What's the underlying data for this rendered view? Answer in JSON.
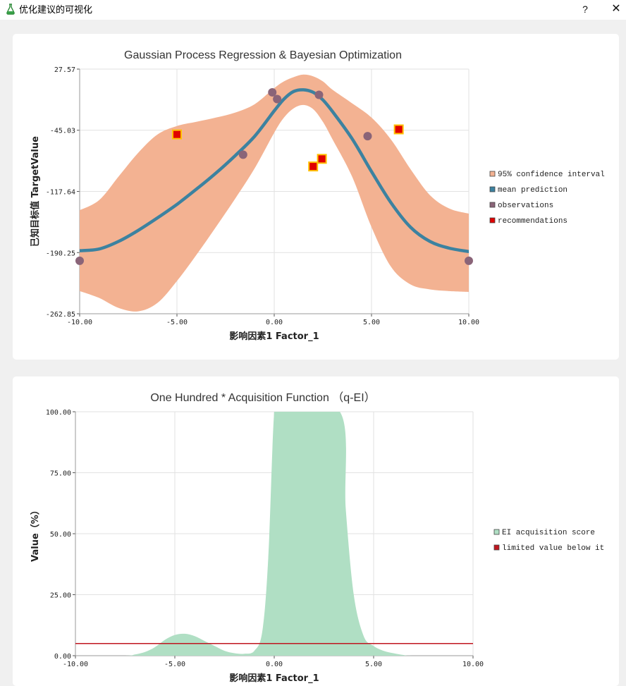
{
  "window": {
    "title": "优化建议的可视化",
    "help_label": "?",
    "close_label": "✕",
    "icon": "flask-icon"
  },
  "colors": {
    "ci_fill": "#f3b292",
    "mean_line": "#3c82a0",
    "observation": "#8a6478",
    "recommendation": "#e00000",
    "recommendation_border": "#ffc000",
    "ei_fill": "#b0dfc4",
    "limit_line": "#c0161f"
  },
  "chart_data": [
    {
      "type": "line",
      "title": "Gaussian Process Regression & Bayesian Optimization",
      "xlabel": "影响因素1 Factor_1",
      "ylabel": "已知目标值 TargetValue",
      "xlim": [
        -10,
        10
      ],
      "ylim": [
        -262.85,
        27.57
      ],
      "xticks": [
        -10,
        -5,
        0,
        5,
        10
      ],
      "xtick_labels": [
        "-10.00",
        "-5.00",
        "0.00",
        "5.00",
        "10.00"
      ],
      "yticks": [
        27.57,
        -45.03,
        -117.64,
        -190.25,
        -262.85
      ],
      "ytick_labels": [
        "27.57",
        "-45.03",
        "-117.64",
        "-190.25",
        "-262.85"
      ],
      "grid": true,
      "legend_position": "right",
      "legend": [
        "95% confidence interval",
        "mean prediction",
        "observations",
        "recommendations"
      ],
      "mean_prediction": {
        "name": "mean prediction",
        "x": [
          -10,
          -9,
          -8,
          -7,
          -6,
          -5,
          -4,
          -3,
          -2,
          -1,
          0,
          0.5,
          1,
          1.5,
          2,
          2.5,
          3,
          4,
          5,
          6,
          7,
          8,
          9,
          10
        ],
        "y": [
          -188,
          -186,
          -177,
          -164,
          -149,
          -133,
          -115,
          -96,
          -75,
          -52,
          -22,
          -8,
          1,
          3,
          0,
          -9,
          -23,
          -55,
          -94,
          -131,
          -160,
          -177,
          -185,
          -189
        ]
      },
      "ci_upper": {
        "x": [
          -10,
          -9,
          -8,
          -7,
          -6,
          -5,
          -4,
          -3,
          -2,
          -1,
          0,
          0.5,
          1,
          1.5,
          2,
          2.5,
          3,
          4,
          5,
          6,
          7,
          8,
          9,
          10
        ],
        "y": [
          -140,
          -128,
          -100,
          -72,
          -50,
          -40,
          -35,
          -30,
          -24,
          -14,
          5,
          13,
          18,
          21,
          19,
          13,
          3,
          -13,
          -30,
          -56,
          -91,
          -122,
          -138,
          -144
        ]
      },
      "ci_lower": {
        "x": [
          -10,
          -9,
          -8,
          -7,
          -6,
          -5,
          -4,
          -3,
          -2,
          -1,
          0,
          0.5,
          1,
          1.5,
          2,
          2.5,
          3,
          4,
          5,
          6,
          7,
          8,
          9,
          10
        ],
        "y": [
          -236,
          -244,
          -256,
          -260,
          -250,
          -224,
          -193,
          -160,
          -126,
          -90,
          -48,
          -30,
          -19,
          -15,
          -20,
          -35,
          -56,
          -100,
          -160,
          -207,
          -228,
          -234,
          -236,
          -237
        ]
      },
      "observations": {
        "name": "observations",
        "x": [
          -10,
          -1.6,
          -0.1,
          0.15,
          2.3,
          4.8,
          10
        ],
        "y": [
          -200,
          -74,
          0,
          -8,
          -3,
          -52,
          -200
        ]
      },
      "recommendations": {
        "name": "recommendations",
        "x": [
          -5,
          2.0,
          2.45,
          6.4
        ],
        "y": [
          -50,
          -88,
          -79,
          -44
        ]
      }
    },
    {
      "type": "area",
      "title": "One Hundred * Acquisition Function （q-EI）",
      "xlabel": "影响因素1 Factor_1",
      "ylabel": "Value（%）",
      "xlim": [
        -10,
        10
      ],
      "ylim": [
        0,
        100
      ],
      "xticks": [
        -10,
        -5,
        0,
        5,
        10
      ],
      "xtick_labels": [
        "-10.00",
        "-5.00",
        "0.00",
        "5.00",
        "10.00"
      ],
      "yticks": [
        100,
        75,
        50,
        25,
        0
      ],
      "ytick_labels": [
        "100.00",
        "75.00",
        "50.00",
        "25.00",
        "0.00"
      ],
      "grid": true,
      "legend_position": "right",
      "legend": [
        "EI acquisition score",
        "limited value below it"
      ],
      "ei_score": {
        "name": "EI acquisition score",
        "x": [
          -10,
          -7.5,
          -7,
          -6.5,
          -6,
          -5.5,
          -5,
          -4.5,
          -4,
          -3.5,
          -3,
          -2.5,
          -2,
          -1.5,
          -1,
          -0.6,
          -0.3,
          0,
          0.3,
          3.3,
          3.6,
          4,
          4.5,
          5,
          5.5,
          6,
          6.5,
          7,
          10
        ],
        "y": [
          0,
          0,
          0.5,
          1.5,
          3.5,
          6.5,
          8.5,
          9,
          8,
          6,
          4,
          2,
          1,
          0.8,
          2,
          10,
          40,
          100,
          100,
          100,
          60,
          25,
          8,
          4,
          2,
          1,
          0.3,
          0,
          0
        ]
      },
      "limit": {
        "name": "limited value below it",
        "y": 5
      }
    }
  ]
}
